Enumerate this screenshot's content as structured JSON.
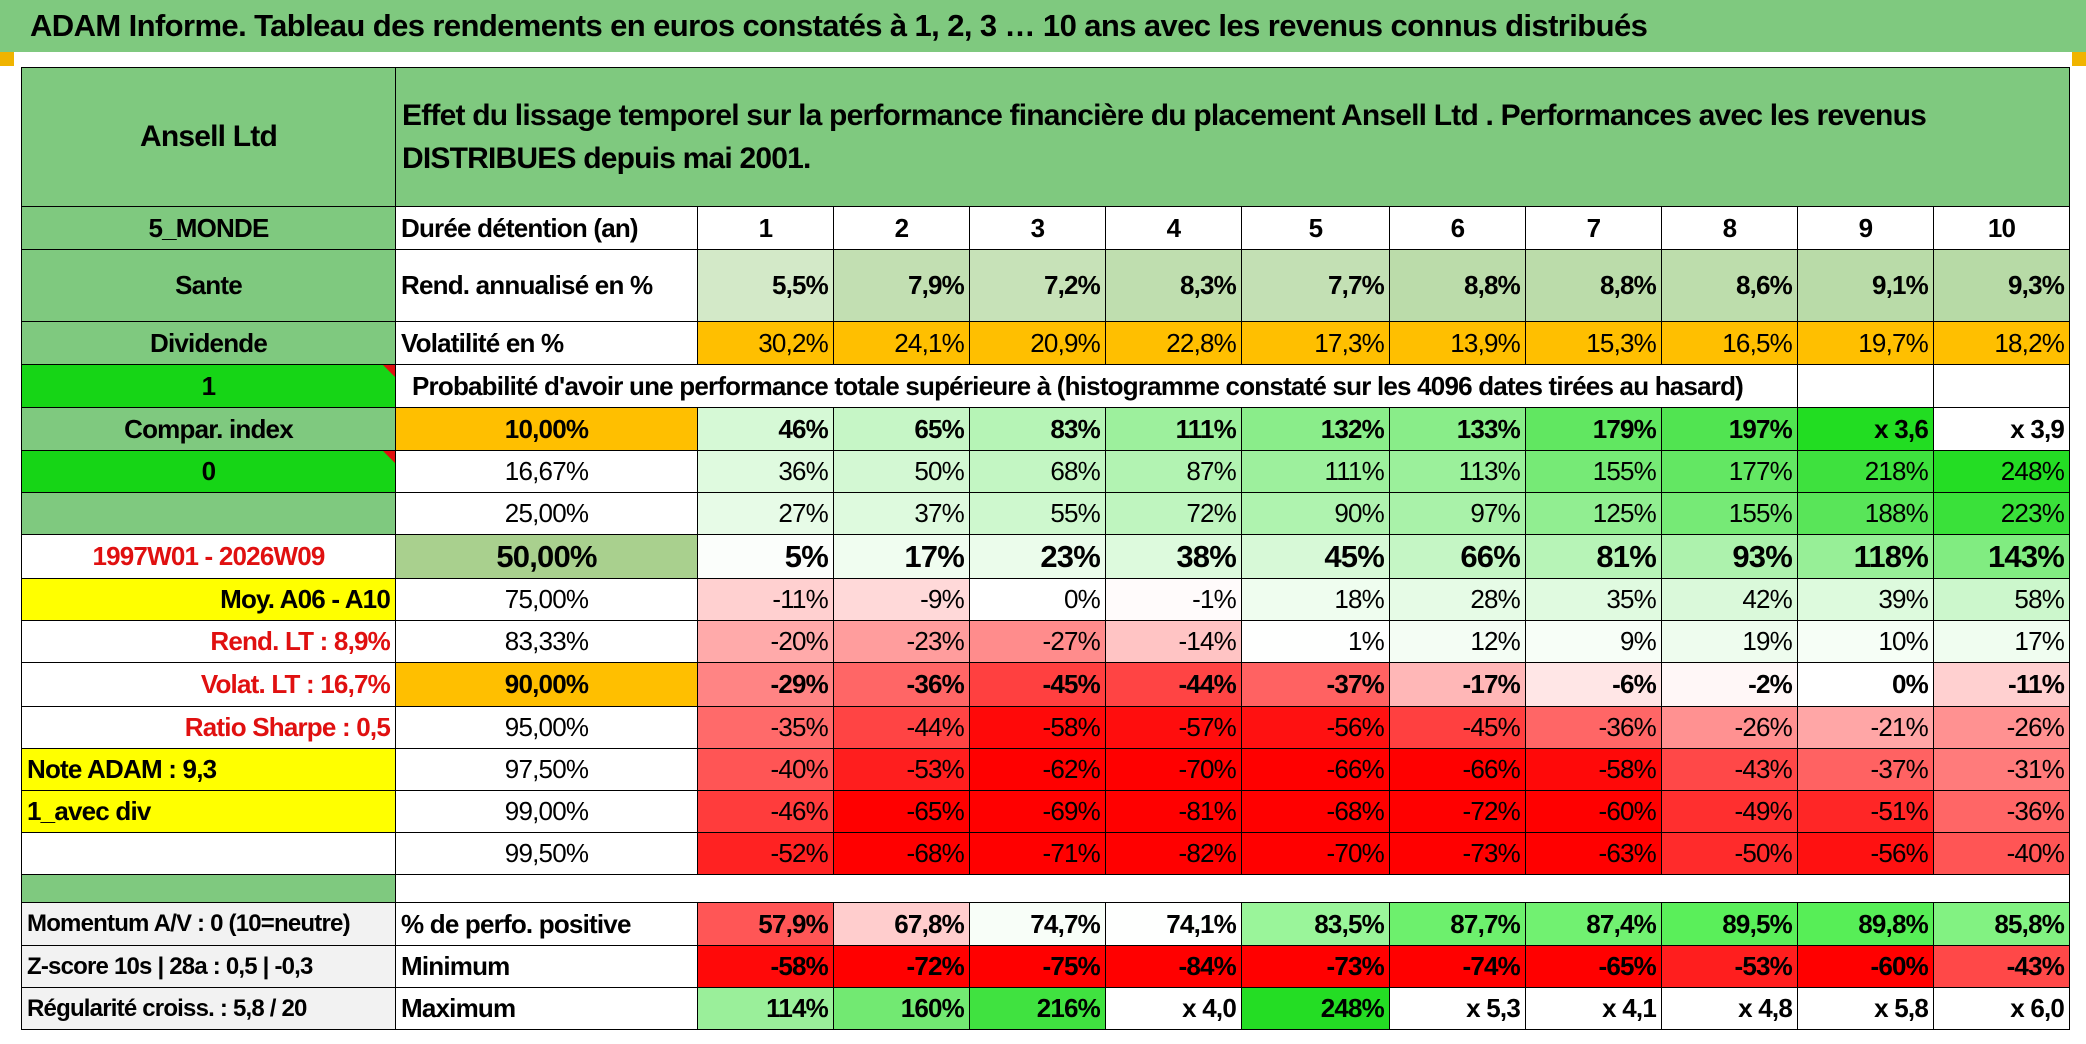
{
  "title": "ADAM Informe. Tableau des rendements en euros constatés à 1, 2, 3 … 10 ans avec les revenus connus distribués",
  "header": {
    "name": "Ansell Ltd",
    "description": "Effet du lissage temporel sur la performance financière du placement Ansell Ltd . Performances avec les revenus DISTRIBUES depuis mai 2001."
  },
  "side": {
    "zone": "5_MONDE",
    "sector": "Sante",
    "type": "Dividende",
    "index_flag": "1",
    "compar": "Compar. index",
    "compar_value": "0",
    "period": "1997W01 - 2026W09",
    "moy": "Moy. A06 - A10",
    "rend_lt": "Rend. LT :   8,9%",
    "volat_lt": "Volat. LT :   16,7%",
    "sharpe": "Ratio Sharpe :   0,5",
    "note": "Note ADAM : 9,3",
    "div": "1_avec div",
    "momentum": "Momentum A/V : 0 (10=neutre)",
    "zscore": "Z-score 10s | 28a : 0,5 | -0,3",
    "regularite": "Régularité croiss. : 5,8 / 20"
  },
  "labels": {
    "duration": "Durée détention (an)",
    "rendement": "Rend. annualisé en %",
    "volatility": "Volatilité en %",
    "probability": "Probabilité d'avoir une performance totale supérieure à (histogramme constaté sur les 4096 dates tirées au hasard)",
    "positive": "% de perfo. positive",
    "minimum": "Minimum",
    "maximum": "Maximum"
  },
  "years": [
    "1",
    "2",
    "3",
    "4",
    "5",
    "6",
    "7",
    "8",
    "9",
    "10"
  ],
  "rendement": [
    "5,5%",
    "7,9%",
    "7,2%",
    "8,3%",
    "7,7%",
    "8,8%",
    "8,8%",
    "8,6%",
    "9,1%",
    "9,3%"
  ],
  "volatility": [
    "30,2%",
    "24,1%",
    "20,9%",
    "22,8%",
    "17,3%",
    "13,9%",
    "15,3%",
    "16,5%",
    "19,7%",
    "18,2%"
  ],
  "quantiles": [
    {
      "p": "10,00%",
      "v": [
        "46%",
        "65%",
        "83%",
        "111%",
        "132%",
        "133%",
        "179%",
        "197%",
        "x 3,6",
        "x 3,9"
      ]
    },
    {
      "p": "16,67%",
      "v": [
        "36%",
        "50%",
        "68%",
        "87%",
        "111%",
        "113%",
        "155%",
        "177%",
        "218%",
        "248%"
      ]
    },
    {
      "p": "25,00%",
      "v": [
        "27%",
        "37%",
        "55%",
        "72%",
        "90%",
        "97%",
        "125%",
        "155%",
        "188%",
        "223%"
      ]
    },
    {
      "p": "50,00%",
      "v": [
        "5%",
        "17%",
        "23%",
        "38%",
        "45%",
        "66%",
        "81%",
        "93%",
        "118%",
        "143%"
      ]
    },
    {
      "p": "75,00%",
      "v": [
        "-11%",
        "-9%",
        "0%",
        "-1%",
        "18%",
        "28%",
        "35%",
        "42%",
        "39%",
        "58%"
      ]
    },
    {
      "p": "83,33%",
      "v": [
        "-20%",
        "-23%",
        "-27%",
        "-14%",
        "1%",
        "12%",
        "9%",
        "19%",
        "10%",
        "17%"
      ]
    },
    {
      "p": "90,00%",
      "v": [
        "-29%",
        "-36%",
        "-45%",
        "-44%",
        "-37%",
        "-17%",
        "-6%",
        "-2%",
        "0%",
        "-11%"
      ]
    },
    {
      "p": "95,00%",
      "v": [
        "-35%",
        "-44%",
        "-58%",
        "-57%",
        "-56%",
        "-45%",
        "-36%",
        "-26%",
        "-21%",
        "-26%"
      ]
    },
    {
      "p": "97,50%",
      "v": [
        "-40%",
        "-53%",
        "-62%",
        "-70%",
        "-66%",
        "-66%",
        "-58%",
        "-43%",
        "-37%",
        "-31%"
      ]
    },
    {
      "p": "99,00%",
      "v": [
        "-46%",
        "-65%",
        "-69%",
        "-81%",
        "-68%",
        "-72%",
        "-60%",
        "-49%",
        "-51%",
        "-36%"
      ]
    },
    {
      "p": "99,50%",
      "v": [
        "-52%",
        "-68%",
        "-71%",
        "-82%",
        "-70%",
        "-73%",
        "-63%",
        "-50%",
        "-56%",
        "-40%"
      ]
    }
  ],
  "positive": [
    "57,9%",
    "67,8%",
    "74,7%",
    "74,1%",
    "83,5%",
    "87,7%",
    "87,4%",
    "89,5%",
    "89,8%",
    "85,8%"
  ],
  "minimum": [
    "-58%",
    "-72%",
    "-75%",
    "-84%",
    "-73%",
    "-74%",
    "-65%",
    "-53%",
    "-60%",
    "-43%"
  ],
  "maximum": [
    "114%",
    "160%",
    "216%",
    "x 4,0",
    "248%",
    "x 5,3",
    "x 4,1",
    "x 4,8",
    "x 5,8",
    "x 6,0"
  ],
  "colors": {
    "header_green": "#7fc97f",
    "bright_green": "#16d516",
    "yellow": "#ffff00",
    "orange": "#ffbf00",
    "olive": "#a9d08e",
    "red_text": "#e01010"
  }
}
